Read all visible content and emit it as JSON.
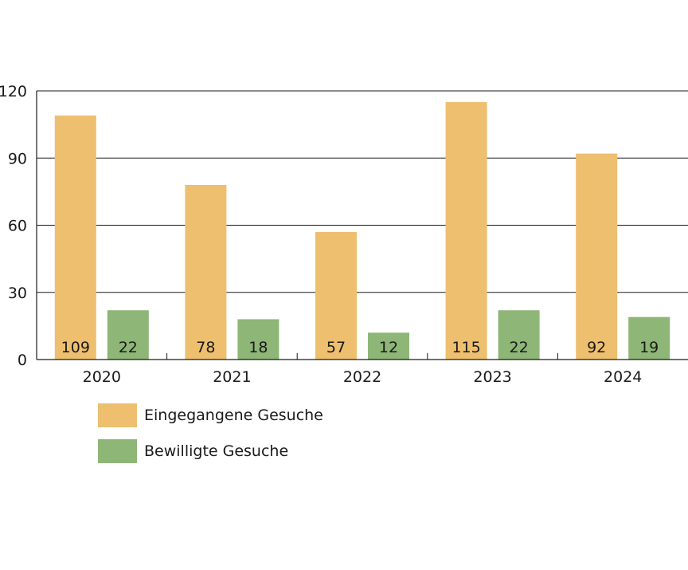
{
  "chart_data": {
    "type": "bar",
    "categories": [
      "2020",
      "2021",
      "2022",
      "2023",
      "2024"
    ],
    "series": [
      {
        "name": "Eingegangene Gesuche",
        "values": [
          109,
          78,
          57,
          115,
          92
        ],
        "color": "#EDBF6F"
      },
      {
        "name": "Bewilligte Gesuche",
        "values": [
          22,
          18,
          12,
          22,
          19
        ],
        "color": "#8DB677"
      }
    ],
    "y_ticks": [
      "0",
      "30",
      "60",
      "90",
      "120"
    ],
    "ylim": [
      0,
      120
    ],
    "grid": true,
    "legend_position": "bottom-left",
    "data_labels": "inside-bottom"
  }
}
